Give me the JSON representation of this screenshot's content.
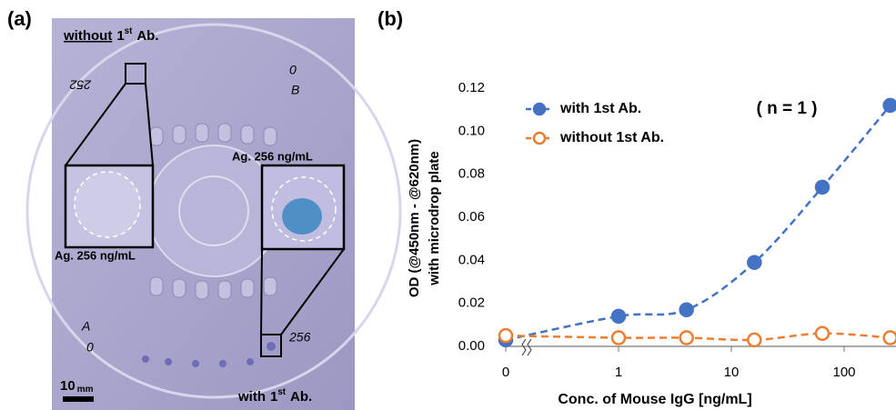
{
  "panel_a": {
    "label": "(a)",
    "top_label": {
      "word": "without",
      "ordinal": "1",
      "suffix": "st",
      "rest": "Ab."
    },
    "bottom_label": {
      "word": "with",
      "ordinal": "1",
      "suffix": "st",
      "rest": "Ab."
    },
    "inset_left_label": "Ag.  256 ng/mL",
    "inset_right_label": "Ag.  256 ng/mL",
    "scale_bar": {
      "value": "10",
      "unit": "mm"
    },
    "handwriting": [
      "252",
      "0",
      "B",
      "A",
      "0",
      "256"
    ]
  },
  "chart_data": {
    "type": "line",
    "panel_label": "(b)",
    "annotation": "( n = 1 )",
    "y_label": [
      "OD (@450nm - @620nm)",
      "with microdrop plate"
    ],
    "x_label": "Conc. of Mouse IgG [ng/mL]",
    "x": [
      0,
      1,
      4,
      16,
      64,
      256
    ],
    "xscale": "log",
    "xlim": [
      0,
      256
    ],
    "xticks": [
      0,
      1,
      10,
      100
    ],
    "ylim": [
      0,
      0.12
    ],
    "yticks": [
      {
        "value": 0,
        "label": "0.00"
      },
      0.02,
      0.04,
      0.06,
      0.08,
      {
        "value": 0.1,
        "label": "0.10"
      },
      0.12
    ],
    "series": [
      {
        "name": "with 1st Ab.",
        "color": "#4472c4",
        "marker": "filled",
        "values": [
          0.003,
          0.014,
          0.017,
          0.039,
          0.074,
          0.112
        ]
      },
      {
        "name": "without 1st Ab.",
        "color": "#ed7d31",
        "marker": "open",
        "values": [
          0.005,
          0.004,
          0.004,
          0.003,
          0.006,
          0.004
        ]
      }
    ],
    "legend": "upper left",
    "grid": false
  }
}
